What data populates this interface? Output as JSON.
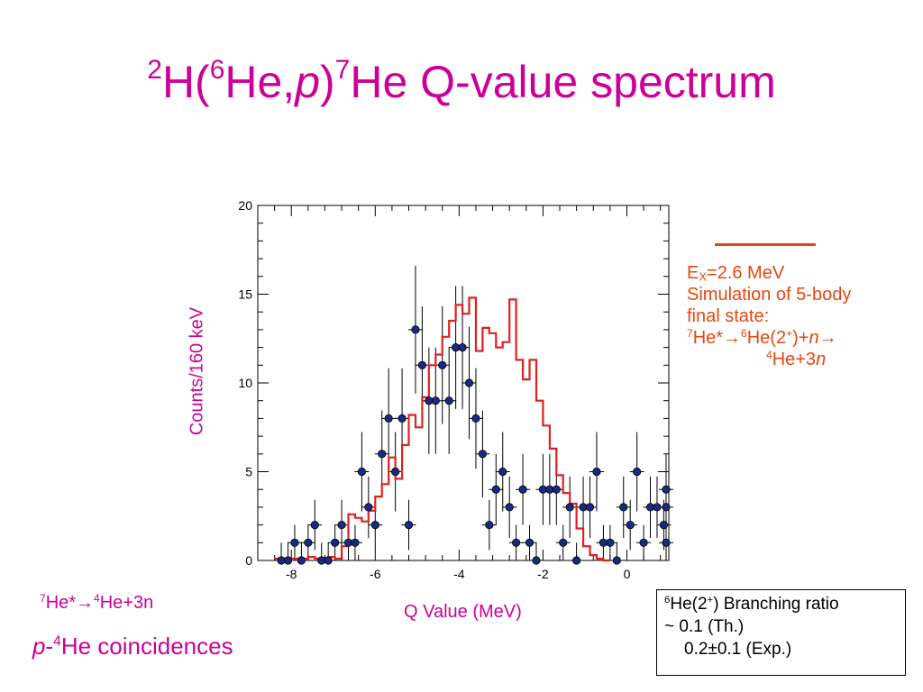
{
  "slide": {
    "title_parts": {
      "sup1": "2",
      "t1": "H(",
      "sup2": "6",
      "t2": "He,",
      "p": "p",
      "t3": ")",
      "sup3": "7",
      "t4": "He Q-value spectrum"
    },
    "reaction_label": {
      "sup1": "7",
      "t1": "He*→",
      "sup2": "4",
      "t2": "He+3n"
    },
    "coincidence_label": {
      "p": "p",
      "t1": "-",
      "sup1": "4",
      "t2": "He coincidences"
    },
    "legend": {
      "ex_pre": "E",
      "ex_sub": "X",
      "ex_post": "=2.6 MeV",
      "line2": "Simulation of 5-body",
      "line3": "final state:",
      "l4_sup1": "7",
      "l4_t1": "He*→",
      "l4_sup2": "6",
      "l4_t2": "He(2",
      "l4_sup3": "+",
      "l4_t3": ")+",
      "l4_n": "n",
      "l4_arrow": "→",
      "l5_sup": "4",
      "l5_t": "He+3",
      "l5_n": "n"
    },
    "branching_box": {
      "l1_sup1": "6",
      "l1_t1": "He(2",
      "l1_sup2": "+",
      "l1_t2": ") Branching ratio",
      "line2": "~ 0.1 (Th.)",
      "line3": "0.2±0.1 (Exp.)"
    },
    "colors": {
      "title": "#cc0099",
      "simulation": "#e8460f",
      "data_marker": "#1a2a80"
    }
  },
  "chart_data": {
    "type": "scatter",
    "xlabel": "Q Value (MeV)",
    "ylabel": "Counts/160 keV",
    "xlim": [
      -8.8,
      1.0
    ],
    "ylim": [
      0,
      20
    ],
    "x_ticks": [
      -8,
      -6,
      -4,
      -2,
      0
    ],
    "y_ticks": [
      0,
      5,
      10,
      15,
      20
    ],
    "grid": false,
    "series": [
      {
        "kind": "data_points",
        "points": [
          [
            -8.24,
            0
          ],
          [
            -8.08,
            0
          ],
          [
            -7.92,
            1
          ],
          [
            -7.76,
            0
          ],
          [
            -7.6,
            1
          ],
          [
            -7.44,
            2
          ],
          [
            -7.28,
            0
          ],
          [
            -7.12,
            0
          ],
          [
            -6.96,
            1
          ],
          [
            -6.8,
            2
          ],
          [
            -6.64,
            1
          ],
          [
            -6.48,
            1
          ],
          [
            -6.32,
            5
          ],
          [
            -6.16,
            3
          ],
          [
            -6.0,
            2
          ],
          [
            -5.84,
            6
          ],
          [
            -5.68,
            8
          ],
          [
            -5.52,
            5
          ],
          [
            -5.36,
            8
          ],
          [
            -5.2,
            2
          ],
          [
            -5.04,
            13
          ],
          [
            -4.88,
            11
          ],
          [
            -4.72,
            9
          ],
          [
            -4.56,
            9
          ],
          [
            -4.4,
            11
          ],
          [
            -4.24,
            9
          ],
          [
            -4.08,
            12
          ],
          [
            -3.92,
            12
          ],
          [
            -3.76,
            10
          ],
          [
            -3.6,
            8
          ],
          [
            -3.44,
            6
          ],
          [
            -3.28,
            2
          ],
          [
            -3.12,
            4
          ],
          [
            -2.96,
            5
          ],
          [
            -2.8,
            3
          ],
          [
            -2.64,
            1
          ],
          [
            -2.48,
            4
          ],
          [
            -2.32,
            1
          ],
          [
            -2.16,
            0
          ],
          [
            -2.0,
            4
          ],
          [
            -1.84,
            4
          ],
          [
            -1.68,
            4
          ],
          [
            -1.52,
            1
          ],
          [
            -1.36,
            3
          ],
          [
            -1.2,
            0
          ],
          [
            -1.04,
            3
          ],
          [
            -0.88,
            3
          ],
          [
            -0.72,
            5
          ],
          [
            -0.56,
            1
          ],
          [
            -0.4,
            1
          ],
          [
            -0.24,
            0
          ],
          [
            -0.08,
            3
          ],
          [
            0.08,
            2
          ],
          [
            0.24,
            5
          ],
          [
            0.4,
            1
          ],
          [
            0.56,
            3
          ],
          [
            0.72,
            3
          ],
          [
            0.88,
            2
          ],
          [
            1.04,
            3
          ],
          [
            1.2,
            1
          ],
          [
            1.36,
            4
          ]
        ]
      },
      {
        "kind": "simulation_histogram",
        "name": "Ex=2.6 MeV",
        "bin_edges_start": -8.4,
        "bin_width": 0.16,
        "values": [
          0.1,
          0.1,
          0.1,
          0.1,
          0.1,
          0.2,
          0.1,
          0.1,
          0.2,
          0.1,
          0.8,
          2.6,
          2.4,
          2.2,
          2.8,
          3.6,
          4.3,
          5.8,
          4.6,
          6.5,
          8.2,
          7.5,
          9.2,
          11.0,
          11.6,
          12.6,
          13.5,
          14.4,
          13.9,
          14.8,
          11.8,
          13.1,
          12.8,
          12.0,
          12.3,
          14.7,
          11.3,
          10.2,
          11.3,
          9.0,
          7.6,
          6.3,
          4.8,
          3.8,
          3.2,
          1.8,
          0.8,
          0.3,
          0.1,
          0.0
        ]
      }
    ]
  }
}
